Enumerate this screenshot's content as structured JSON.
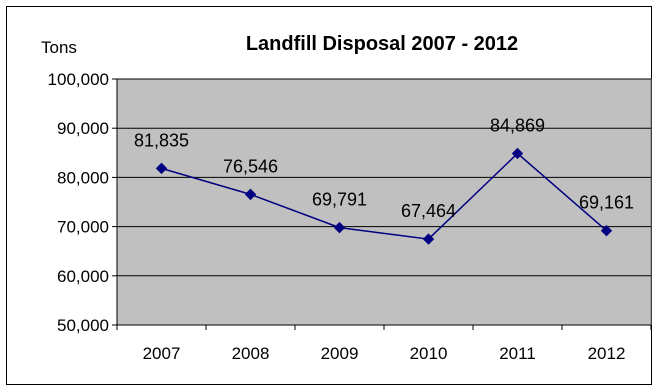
{
  "chart_data": {
    "type": "line",
    "title": "Landfill Disposal 2007 - 2012",
    "xlabel": "",
    "ylabel": "Tons",
    "categories": [
      "2007",
      "2008",
      "2009",
      "2010",
      "2011",
      "2012"
    ],
    "series": [
      {
        "values": [
          81835,
          76546,
          69791,
          67464,
          84869,
          69161
        ],
        "color": "#000080"
      }
    ],
    "data_labels": [
      "81,835",
      "76,546",
      "69,791",
      "67,464",
      "84,869",
      "69,161"
    ],
    "yticks": [
      50000,
      60000,
      70000,
      80000,
      90000,
      100000
    ],
    "ytick_labels": [
      "50,000",
      "60,000",
      "70,000",
      "80,000",
      "90,000",
      "100,000"
    ],
    "ylim": [
      50000,
      100000
    ],
    "grid": true,
    "marker": "diamond",
    "colors": {
      "plot_background": "#c0c0c0",
      "gridline": "#000000",
      "line": "#000080",
      "frame": "#000000"
    }
  }
}
